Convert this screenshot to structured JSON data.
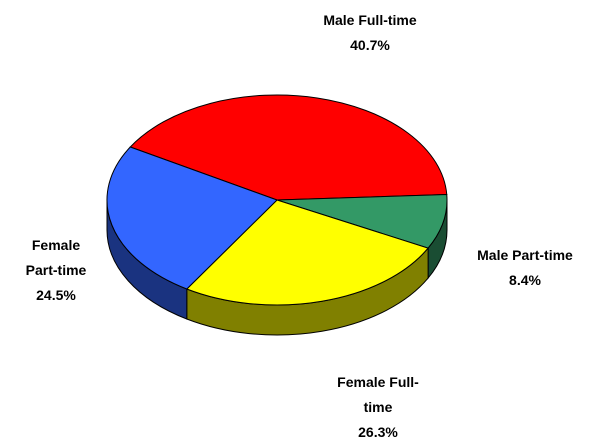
{
  "chart_data": {
    "type": "pie3d",
    "categories": [
      "Male Full-time",
      "Male Part-time",
      "Female Full-time",
      "Female Part-time"
    ],
    "values": [
      40.7,
      8.4,
      26.3,
      24.5
    ],
    "value_labels": [
      "40.7%",
      "8.4%",
      "26.3%",
      "24.5%"
    ],
    "colors": [
      "#ff0000",
      "#339966",
      "#ffff00",
      "#3366ff"
    ]
  }
}
